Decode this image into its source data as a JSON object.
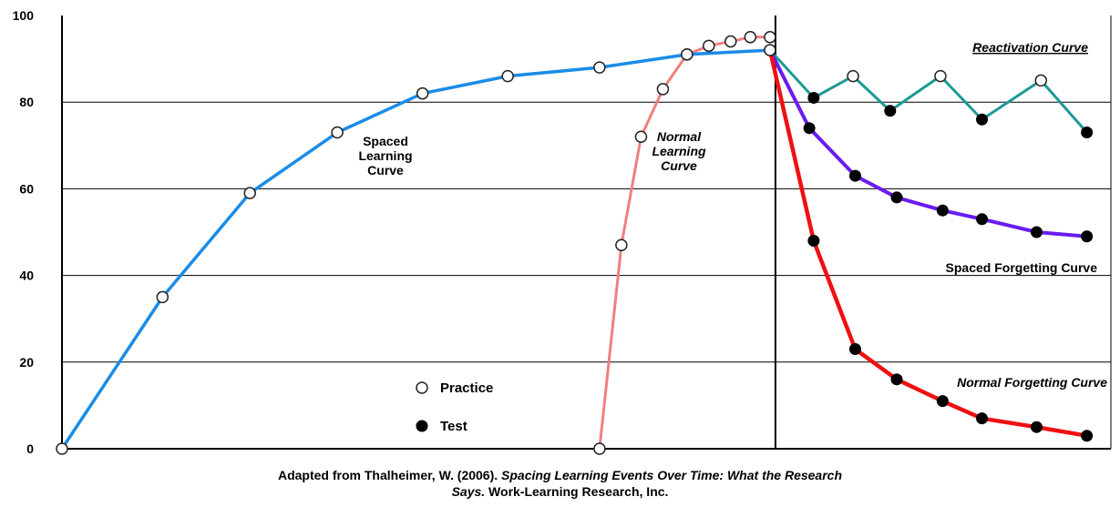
{
  "chart_data": {
    "type": "line",
    "ylim": [
      0,
      100
    ],
    "y_ticks": [
      "0",
      "20",
      "40",
      "60",
      "80",
      "100"
    ],
    "grid": "horizontal",
    "colors": {
      "spaced_learning": "#1a8ce8",
      "normal_learning": "#f07f7f",
      "reactivation": "#1b9a96",
      "spaced_forgetting": "#6a1cf0",
      "normal_forgetting": "#ee1111"
    },
    "series": [
      {
        "name": "Spaced Learning Curve",
        "key": "spaced_learning",
        "marker": "practice",
        "x": [
          0,
          4.6,
          8.6,
          12.6,
          16.5,
          20.4,
          24.6,
          28.6,
          32.4
        ],
        "y": [
          0,
          35,
          59,
          73,
          82,
          86,
          88,
          91,
          92
        ]
      },
      {
        "name": "Normal Learning Curve",
        "key": "normal_learning",
        "marker": "practice",
        "x": [
          24.6,
          25.6,
          26.5,
          27.5,
          28.6,
          29.6,
          30.6,
          31.5,
          32.4
        ],
        "y": [
          0,
          47,
          72,
          83,
          91,
          93,
          94,
          95,
          95
        ]
      },
      {
        "name": "Reactivation Curve",
        "key": "reactivation",
        "marker": "alternating",
        "x": [
          32.4,
          34.4,
          36.2,
          37.9,
          40.2,
          42.1,
          44.8,
          46.9
        ],
        "y": [
          92,
          81,
          86,
          78,
          86,
          76,
          85,
          73
        ],
        "markers": [
          "practice",
          "test",
          "practice",
          "test",
          "practice",
          "test",
          "practice",
          "test"
        ]
      },
      {
        "name": "Spaced Forgetting Curve",
        "key": "spaced_forgetting",
        "marker": "test",
        "x": [
          32.4,
          34.2,
          36.3,
          38.2,
          40.3,
          42.1,
          44.6,
          46.9
        ],
        "y": [
          92,
          74,
          63,
          58,
          55,
          53,
          50,
          49
        ]
      },
      {
        "name": "Normal Forgetting Curve",
        "key": "normal_forgetting",
        "marker": "test",
        "x": [
          32.4,
          34.4,
          36.3,
          38.2,
          40.3,
          42.1,
          44.6,
          46.9
        ],
        "y": [
          92,
          48,
          23,
          16,
          11,
          7,
          5,
          3
        ]
      }
    ],
    "labels": {
      "spaced_learning": [
        "Spaced",
        "Learning",
        "Curve"
      ],
      "normal_learning": [
        "Normal",
        "Learning",
        "Curve"
      ],
      "reactivation": "Reactivation Curve",
      "spaced_forgetting": "Spaced Forgetting Curve",
      "normal_forgetting": "Normal Forgetting Curve"
    },
    "legend": {
      "placement": "bottom-center",
      "items": [
        {
          "label": "Practice",
          "marker": "practice"
        },
        {
          "label": "Test",
          "marker": "test"
        }
      ]
    }
  },
  "caption": {
    "line1_plain": "Adapted from Thalheimer, W. (2006). ",
    "line1_italic": "Spacing Learning Events Over Time: What the Research",
    "line2_italic": "Says.",
    "line2_plain": " Work-Learning Research, Inc."
  }
}
